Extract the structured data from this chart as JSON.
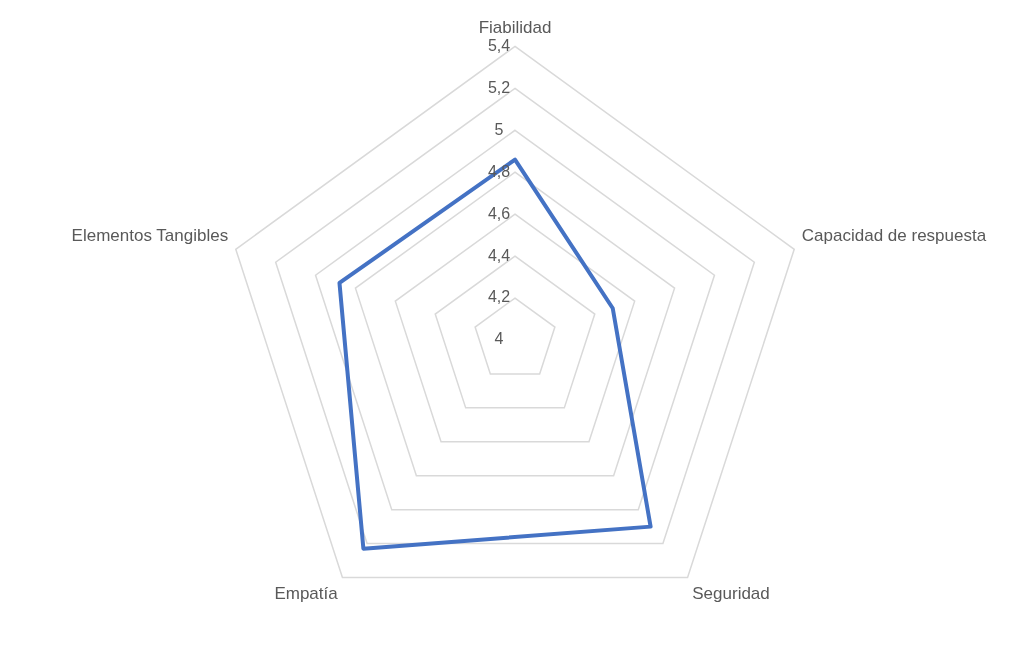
{
  "chart_data": {
    "type": "radar",
    "categories": [
      "Fiabilidad",
      "Capacidad de respuesta",
      "Seguridad",
      "Empatía",
      "Elementos Tangibles"
    ],
    "series": [
      {
        "color": "#4472c4",
        "values": [
          4.86,
          4.49,
          5.1,
          5.23,
          4.88
        ]
      }
    ],
    "ylim": [
      4,
      5.4
    ],
    "yticks": [
      {
        "value": 4,
        "label": "4"
      },
      {
        "value": 4.2,
        "label": "4,2"
      },
      {
        "value": 4.4,
        "label": "4,4"
      },
      {
        "value": 4.6,
        "label": "4,6"
      },
      {
        "value": 4.8,
        "label": "4,8"
      },
      {
        "value": 5,
        "label": "5"
      },
      {
        "value": 5.2,
        "label": "5,2"
      },
      {
        "value": 5.4,
        "label": "5,4"
      }
    ],
    "grid": true,
    "legend": false,
    "marker": "none"
  }
}
